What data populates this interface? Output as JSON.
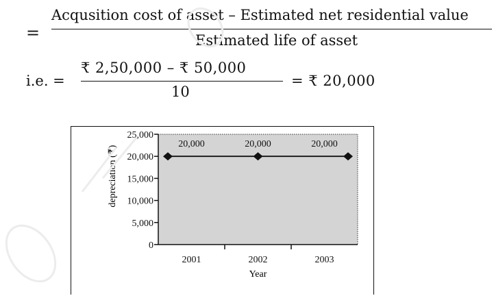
{
  "formula": {
    "eq_sign": "=",
    "numerator": "Acqusition cost of asset – Estimated net residential value",
    "denominator": "Estimated life of asset",
    "ie_prefix": "i.e. =",
    "ie_numerator": "₹ 2,50,000 – ₹ 50,000",
    "ie_denominator": "10",
    "ie_result": "= ₹ 20,000"
  },
  "chart_data": {
    "type": "line",
    "categories": [
      "2001",
      "2002",
      "2003"
    ],
    "series": [
      {
        "values": [
          20000,
          20000,
          20000
        ],
        "color": "#111111"
      }
    ],
    "data_labels": [
      "20,000",
      "20,000",
      "20,000"
    ],
    "y_ticks": [
      0,
      5000,
      10000,
      15000,
      20000,
      25000
    ],
    "y_tick_labels": [
      "0",
      "5,000",
      "10,000",
      "15,000",
      "20,000",
      "25,000"
    ],
    "ylim": [
      0,
      25000
    ],
    "xlabel": "Year",
    "ylabel": "depreciation (₹)",
    "title": "",
    "plot_background": "#d4d4d4",
    "grid": false,
    "legend": "none"
  }
}
